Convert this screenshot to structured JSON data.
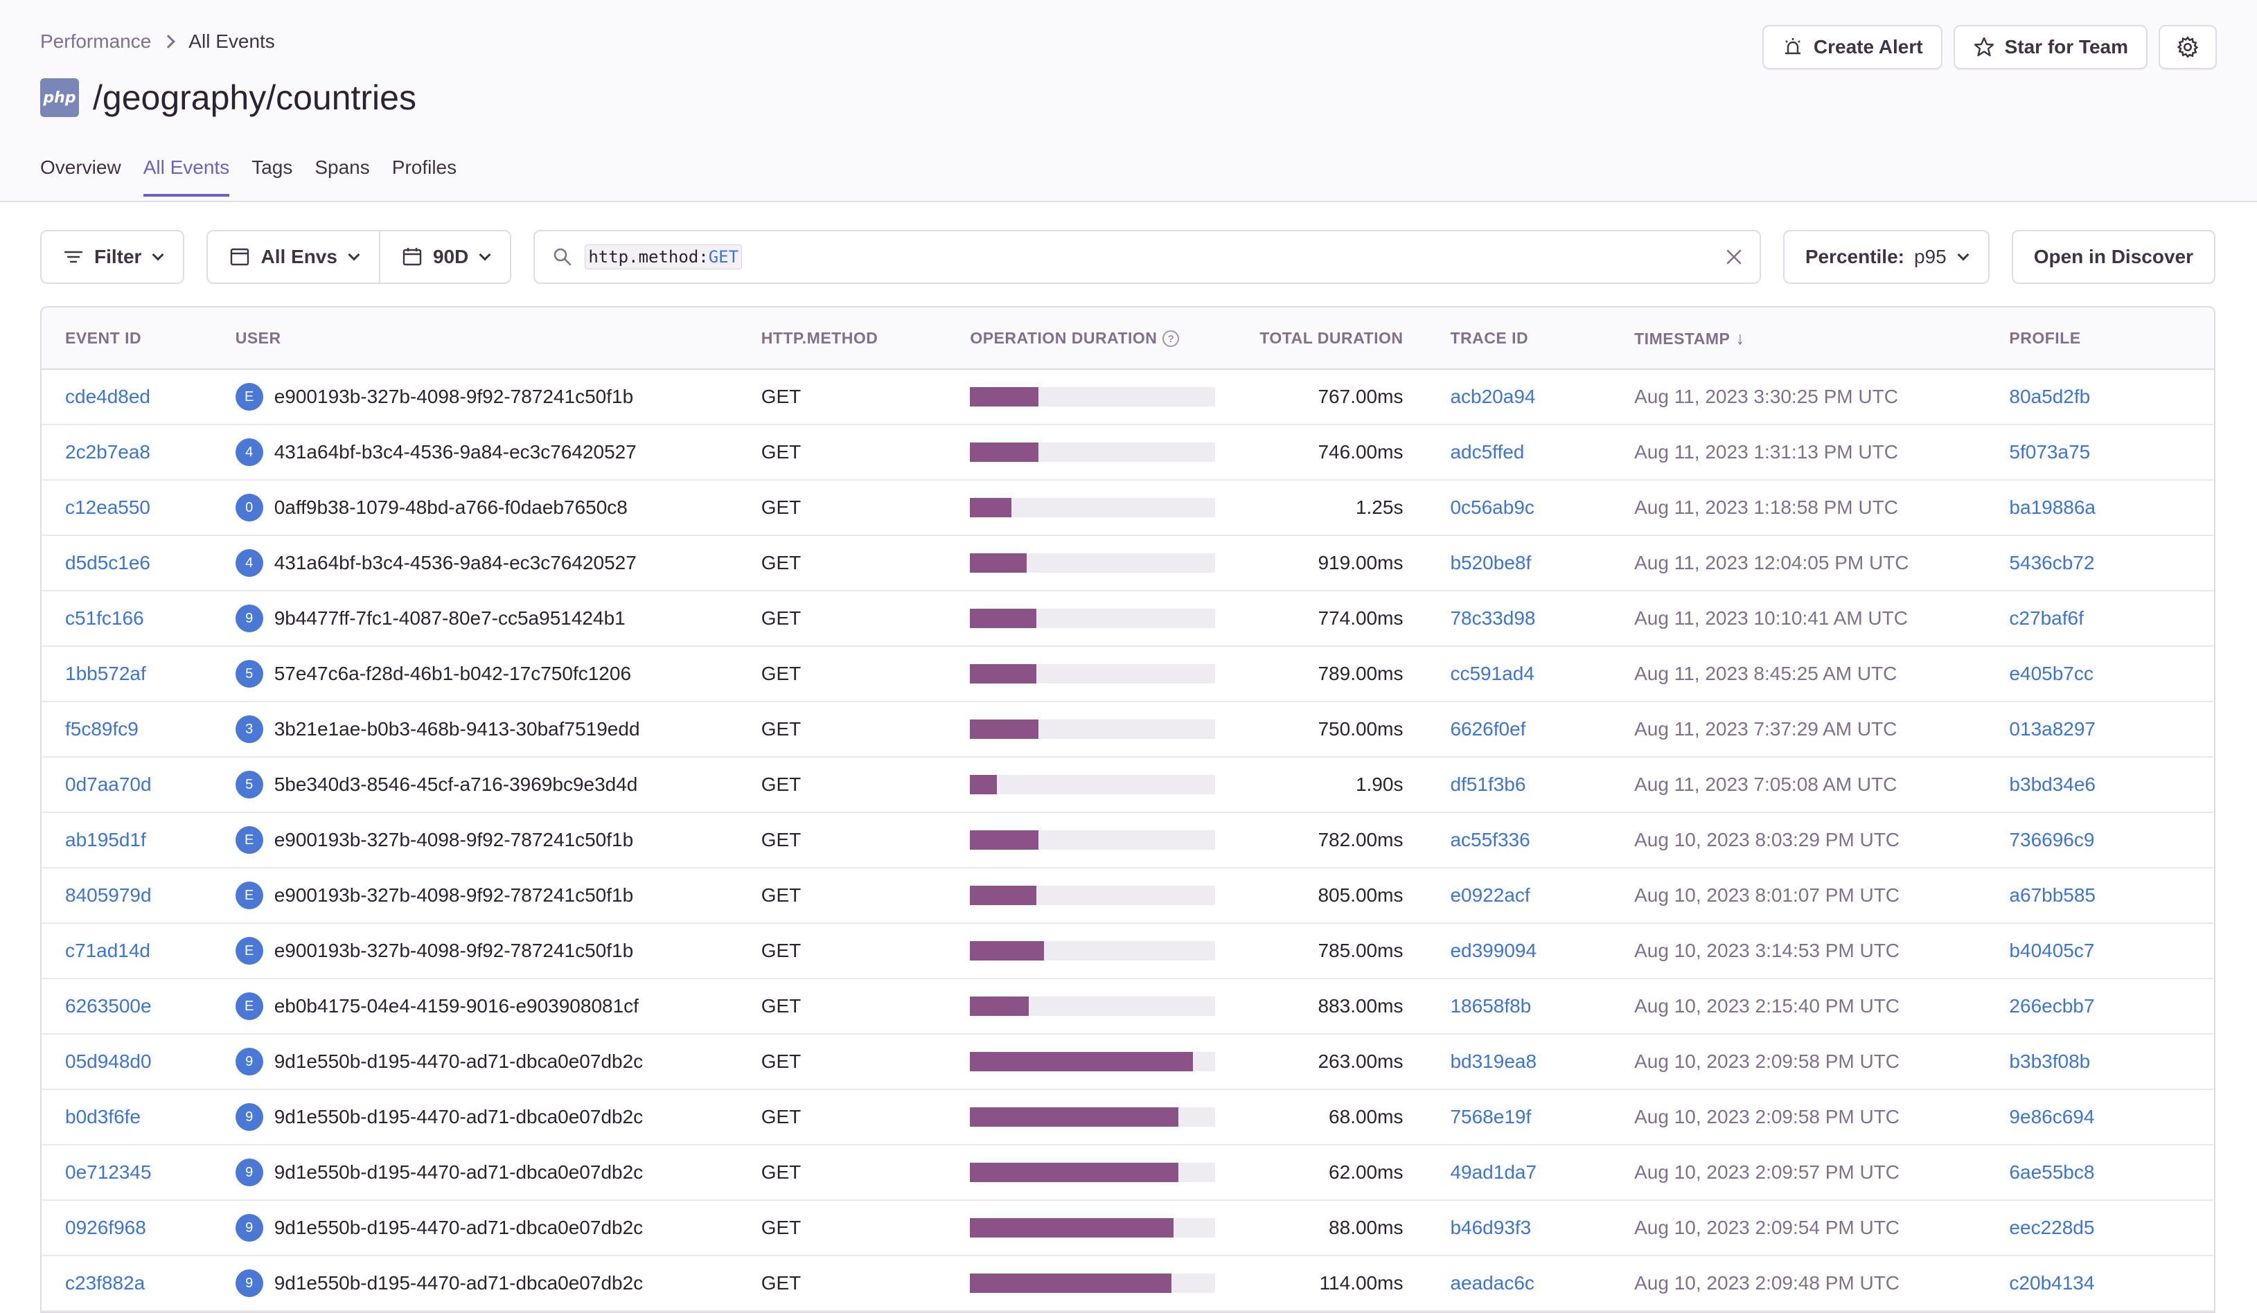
{
  "breadcrumb": {
    "parent": "Performance",
    "current": "All Events"
  },
  "title": {
    "badge": "php",
    "text": "/geography/countries"
  },
  "actions": {
    "create_alert": "Create Alert",
    "star_team": "Star for Team"
  },
  "tabs": [
    {
      "label": "Overview",
      "active": false
    },
    {
      "label": "All Events",
      "active": true
    },
    {
      "label": "Tags",
      "active": false
    },
    {
      "label": "Spans",
      "active": false
    },
    {
      "label": "Profiles",
      "active": false
    }
  ],
  "toolbar": {
    "filter": "Filter",
    "env": "All Envs",
    "period": "90D",
    "search_key": "http.method:",
    "search_value": "GET",
    "percentile_label": "Percentile:",
    "percentile_value": "p95",
    "open_discover": "Open in Discover"
  },
  "columns": {
    "event_id": "EVENT ID",
    "user": "USER",
    "http_method": "HTTP.METHOD",
    "operation_duration": "OPERATION DURATION",
    "total_duration": "TOTAL DURATION",
    "trace_id": "TRACE ID",
    "timestamp": "TIMESTAMP",
    "profile": "PROFILE"
  },
  "colors": {
    "accent": "#6c5fc7",
    "link": "#3c74dd",
    "bar": "#8a5286",
    "avatar": "#4a78d6"
  },
  "rows": [
    {
      "event_id": "cde4d8ed",
      "avatar": "E",
      "user": "e900193b-327b-4098-9f92-787241c50f1b",
      "method": "GET",
      "op_fraction": 0.28,
      "total": "767.00ms",
      "trace": "acb20a94",
      "timestamp": "Aug 11, 2023 3:30:25 PM UTC",
      "profile": "80a5d2fb"
    },
    {
      "event_id": "2c2b7ea8",
      "avatar": "4",
      "user": "431a64bf-b3c4-4536-9a84-ec3c76420527",
      "method": "GET",
      "op_fraction": 0.28,
      "total": "746.00ms",
      "trace": "adc5ffed",
      "timestamp": "Aug 11, 2023 1:31:13 PM UTC",
      "profile": "5f073a75"
    },
    {
      "event_id": "c12ea550",
      "avatar": "0",
      "user": "0aff9b38-1079-48bd-a766-f0daeb7650c8",
      "method": "GET",
      "op_fraction": 0.17,
      "total": "1.25s",
      "trace": "0c56ab9c",
      "timestamp": "Aug 11, 2023 1:18:58 PM UTC",
      "profile": "ba19886a"
    },
    {
      "event_id": "d5d5c1e6",
      "avatar": "4",
      "user": "431a64bf-b3c4-4536-9a84-ec3c76420527",
      "method": "GET",
      "op_fraction": 0.23,
      "total": "919.00ms",
      "trace": "b520be8f",
      "timestamp": "Aug 11, 2023 12:04:05 PM UTC",
      "profile": "5436cb72"
    },
    {
      "event_id": "c51fc166",
      "avatar": "9",
      "user": "9b4477ff-7fc1-4087-80e7-cc5a951424b1",
      "method": "GET",
      "op_fraction": 0.27,
      "total": "774.00ms",
      "trace": "78c33d98",
      "timestamp": "Aug 11, 2023 10:10:41 AM UTC",
      "profile": "c27baf6f"
    },
    {
      "event_id": "1bb572af",
      "avatar": "5",
      "user": "57e47c6a-f28d-46b1-b042-17c750fc1206",
      "method": "GET",
      "op_fraction": 0.27,
      "total": "789.00ms",
      "trace": "cc591ad4",
      "timestamp": "Aug 11, 2023 8:45:25 AM UTC",
      "profile": "e405b7cc"
    },
    {
      "event_id": "f5c89fc9",
      "avatar": "3",
      "user": "3b21e1ae-b0b3-468b-9413-30baf7519edd",
      "method": "GET",
      "op_fraction": 0.28,
      "total": "750.00ms",
      "trace": "6626f0ef",
      "timestamp": "Aug 11, 2023 7:37:29 AM UTC",
      "profile": "013a8297"
    },
    {
      "event_id": "0d7aa70d",
      "avatar": "5",
      "user": "5be340d3-8546-45cf-a716-3969bc9e3d4d",
      "method": "GET",
      "op_fraction": 0.11,
      "total": "1.90s",
      "trace": "df51f3b6",
      "timestamp": "Aug 11, 2023 7:05:08 AM UTC",
      "profile": "b3bd34e6"
    },
    {
      "event_id": "ab195d1f",
      "avatar": "E",
      "user": "e900193b-327b-4098-9f92-787241c50f1b",
      "method": "GET",
      "op_fraction": 0.28,
      "total": "782.00ms",
      "trace": "ac55f336",
      "timestamp": "Aug 10, 2023 8:03:29 PM UTC",
      "profile": "736696c9"
    },
    {
      "event_id": "8405979d",
      "avatar": "E",
      "user": "e900193b-327b-4098-9f92-787241c50f1b",
      "method": "GET",
      "op_fraction": 0.27,
      "total": "805.00ms",
      "trace": "e0922acf",
      "timestamp": "Aug 10, 2023 8:01:07 PM UTC",
      "profile": "a67bb585"
    },
    {
      "event_id": "c71ad14d",
      "avatar": "E",
      "user": "e900193b-327b-4098-9f92-787241c50f1b",
      "method": "GET",
      "op_fraction": 0.3,
      "total": "785.00ms",
      "trace": "ed399094",
      "timestamp": "Aug 10, 2023 3:14:53 PM UTC",
      "profile": "b40405c7"
    },
    {
      "event_id": "6263500e",
      "avatar": "E",
      "user": "eb0b4175-04e4-4159-9016-e903908081cf",
      "method": "GET",
      "op_fraction": 0.24,
      "total": "883.00ms",
      "trace": "18658f8b",
      "timestamp": "Aug 10, 2023 2:15:40 PM UTC",
      "profile": "266ecbb7"
    },
    {
      "event_id": "05d948d0",
      "avatar": "9",
      "user": "9d1e550b-d195-4470-ad71-dbca0e07db2c",
      "method": "GET",
      "op_fraction": 0.91,
      "total": "263.00ms",
      "trace": "bd319ea8",
      "timestamp": "Aug 10, 2023 2:09:58 PM UTC",
      "profile": "b3b3f08b"
    },
    {
      "event_id": "b0d3f6fe",
      "avatar": "9",
      "user": "9d1e550b-d195-4470-ad71-dbca0e07db2c",
      "method": "GET",
      "op_fraction": 0.85,
      "total": "68.00ms",
      "trace": "7568e19f",
      "timestamp": "Aug 10, 2023 2:09:58 PM UTC",
      "profile": "9e86c694"
    },
    {
      "event_id": "0e712345",
      "avatar": "9",
      "user": "9d1e550b-d195-4470-ad71-dbca0e07db2c",
      "method": "GET",
      "op_fraction": 0.85,
      "total": "62.00ms",
      "trace": "49ad1da7",
      "timestamp": "Aug 10, 2023 2:09:57 PM UTC",
      "profile": "6ae55bc8"
    },
    {
      "event_id": "0926f968",
      "avatar": "9",
      "user": "9d1e550b-d195-4470-ad71-dbca0e07db2c",
      "method": "GET",
      "op_fraction": 0.83,
      "total": "88.00ms",
      "trace": "b46d93f3",
      "timestamp": "Aug 10, 2023 2:09:54 PM UTC",
      "profile": "eec228d5"
    },
    {
      "event_id": "c23f882a",
      "avatar": "9",
      "user": "9d1e550b-d195-4470-ad71-dbca0e07db2c",
      "method": "GET",
      "op_fraction": 0.82,
      "total": "114.00ms",
      "trace": "aeadac6c",
      "timestamp": "Aug 10, 2023 2:09:48 PM UTC",
      "profile": "c20b4134"
    }
  ]
}
